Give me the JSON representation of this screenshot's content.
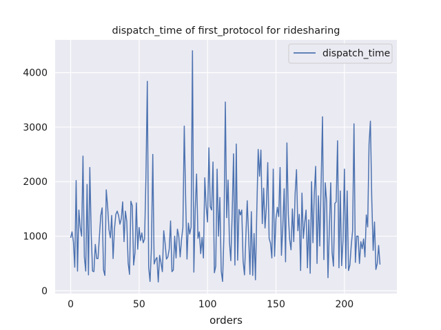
{
  "chart_data": {
    "type": "line",
    "title": "dispatch_time of first_protocol for ridesharing",
    "xlabel": "orders",
    "ylabel": "",
    "xlim": [
      -11.35,
      238.35
    ],
    "ylim": [
      -52,
      4600
    ],
    "xticks": [
      0,
      50,
      100,
      150,
      200
    ],
    "yticks": [
      0,
      1000,
      2000,
      3000,
      4000
    ],
    "grid": true,
    "legend_position": "upper right",
    "colors": {
      "line": "#4c72b0",
      "plot_background": "#eaeaf2",
      "grid": "#ffffff"
    },
    "series": [
      {
        "name": "dispatch_time",
        "x_start": 0,
        "values": [
          970,
          1080,
          900,
          430,
          2020,
          360,
          1480,
          1160,
          1000,
          2470,
          620,
          360,
          1950,
          290,
          2260,
          1050,
          360,
          350,
          850,
          590,
          590,
          1000,
          1380,
          1520,
          380,
          280,
          1850,
          1550,
          1120,
          970,
          1380,
          590,
          1130,
          1400,
          1460,
          1380,
          1220,
          1320,
          1630,
          900,
          1460,
          1270,
          510,
          300,
          1640,
          1560,
          470,
          700,
          1610,
          760,
          1160,
          920,
          1060,
          880,
          950,
          2070,
          3840,
          430,
          170,
          780,
          2500,
          490,
          570,
          610,
          160,
          650,
          510,
          350,
          1100,
          870,
          580,
          620,
          760,
          1280,
          350,
          380,
          1000,
          600,
          1130,
          1000,
          620,
          940,
          1160,
          3020,
          1700,
          580,
          1240,
          1040,
          1170,
          4400,
          340,
          1490,
          2140,
          960,
          1080,
          680,
          980,
          600,
          2070,
          1550,
          1260,
          2620,
          1540,
          1480,
          2360,
          330,
          450,
          2230,
          1000,
          1710,
          360,
          170,
          1050,
          3460,
          1340,
          2030,
          900,
          550,
          1400,
          2510,
          470,
          2690,
          560,
          1490,
          1390,
          1480,
          540,
          290,
          1000,
          1650,
          1010,
          300,
          1450,
          280,
          1050,
          200,
          1460,
          2590,
          2100,
          2580,
          1230,
          1880,
          1150,
          1540,
          2350,
          960,
          870,
          600,
          2230,
          630,
          1320,
          1530,
          1360,
          2260,
          650,
          1170,
          1870,
          530,
          2710,
          1400,
          940,
          750,
          1500,
          900,
          1780,
          2220,
          1100,
          1400,
          370,
          1790,
          960,
          1250,
          1480,
          420,
          1300,
          320,
          2000,
          880,
          1780,
          2280,
          500,
          1740,
          820,
          1980,
          3190,
          570,
          1980,
          1640,
          240,
          1140,
          1980,
          700,
          450,
          1600,
          1630,
          2750,
          420,
          1830,
          460,
          930,
          2230,
          410,
          1830,
          370,
          470,
          830,
          1100,
          3060,
          520,
          1000,
          1000,
          500,
          900,
          770,
          950,
          620,
          1390,
          1170,
          2690,
          3110,
          1670,
          740,
          1260,
          390,
          500,
          830,
          480
        ]
      }
    ]
  }
}
